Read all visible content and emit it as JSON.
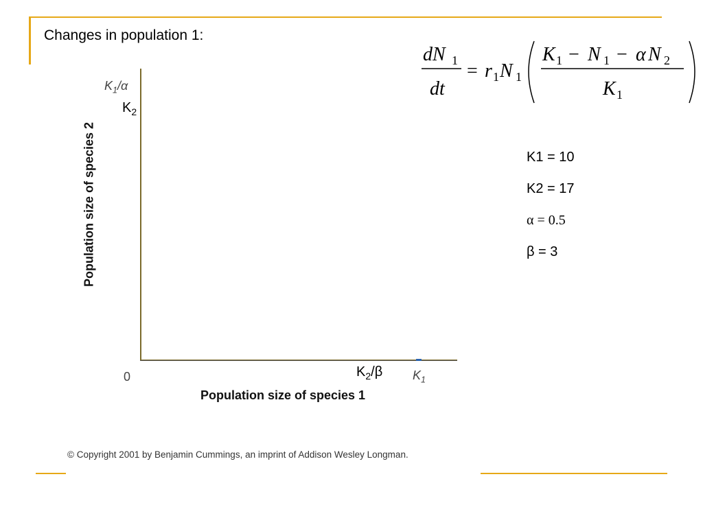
{
  "slide": {
    "title": "Changes in population 1:"
  },
  "graph": {
    "y_axis_label": "Population size of species 2",
    "x_axis_label": "Population size of species 1",
    "origin_label": "0",
    "y_tick_k1_alpha": "K1/α",
    "y_tick_k2": "K2",
    "x_tick_k2_beta": "K2/β",
    "x_tick_k1": "K1"
  },
  "equation": {
    "lhs_num": "dN",
    "lhs_num_sub": "1",
    "lhs_den": "dt",
    "eq": "=",
    "r": "r",
    "r_sub": "1",
    "n": "N",
    "n_sub": "1",
    "k_num": "K",
    "k_num_sub": "1",
    "minus1": "−",
    "n1": "N",
    "n1_sub": "1",
    "minus2": "−",
    "alpha": "α",
    "n2": "N",
    "n2_sub": "2",
    "k_den": "K",
    "k_den_sub": "1"
  },
  "parameters": {
    "k1": "K1 = 10",
    "k2": "K2 = 17",
    "alpha": "α = 0.5",
    "beta": "β = 3"
  },
  "copyright": "© Copyright 2001 by Benjamin Cummings, an imprint of Addison Wesley Longman.",
  "colors": {
    "accent": "#e6a817",
    "axis": "#7a6a2a",
    "k1_marker": "#2a63b0"
  }
}
